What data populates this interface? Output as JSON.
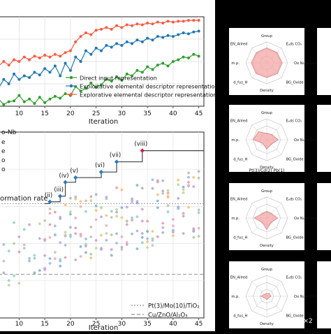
{
  "chart_data": [
    {
      "type": "line",
      "xlabel": "Iteration",
      "x_ticks": [
        10,
        15,
        20,
        25,
        30,
        35,
        40,
        45
      ],
      "xlim": [
        6,
        46
      ],
      "ylim": [
        0,
        1
      ],
      "legend_position": "lower-right",
      "series": [
        {
          "name": "Direct input representation",
          "color": "#2ca02c",
          "x": [
            6,
            7,
            8,
            9,
            10,
            11,
            12,
            13,
            14,
            15,
            16,
            17,
            18,
            19,
            20,
            21,
            22,
            23,
            24,
            25,
            26,
            27,
            28,
            29,
            30,
            31,
            32,
            33,
            34,
            35,
            36,
            37,
            38,
            39,
            40,
            41,
            42,
            43,
            44,
            45
          ],
          "values": [
            0.08,
            0.02,
            0.05,
            0.06,
            0.12,
            0.05,
            0.08,
            0.03,
            0.1,
            0.04,
            0.08,
            0.11,
            0.09,
            0.14,
            0.12,
            0.22,
            0.17,
            0.2,
            0.26,
            0.21,
            0.24,
            0.3,
            0.28,
            0.33,
            0.29,
            0.36,
            0.34,
            0.4,
            0.38,
            0.44,
            0.41,
            0.46,
            0.48,
            0.45,
            0.5,
            0.52,
            0.55,
            0.54,
            0.58,
            0.56
          ]
        },
        {
          "name": "Exploitative elemental descriptor representation",
          "color": "#1f77b4",
          "x": [
            6,
            7,
            8,
            9,
            10,
            11,
            12,
            13,
            14,
            15,
            16,
            17,
            18,
            19,
            20,
            21,
            22,
            23,
            24,
            25,
            26,
            27,
            28,
            29,
            30,
            31,
            32,
            33,
            34,
            35,
            36,
            37,
            38,
            39,
            40,
            41,
            42,
            43,
            44,
            45
          ],
          "values": [
            0.2,
            0.3,
            0.25,
            0.36,
            0.3,
            0.34,
            0.32,
            0.38,
            0.35,
            0.42,
            0.38,
            0.45,
            0.34,
            0.48,
            0.4,
            0.55,
            0.5,
            0.62,
            0.58,
            0.65,
            0.62,
            0.68,
            0.66,
            0.7,
            0.68,
            0.72,
            0.7,
            0.74,
            0.72,
            0.76,
            0.74,
            0.78,
            0.77,
            0.79,
            0.78,
            0.8,
            0.82,
            0.81,
            0.83,
            0.84
          ]
        },
        {
          "name": "Explorative elemental descriptor representation",
          "color": "#ff5a40",
          "x": [
            6,
            7,
            8,
            9,
            10,
            11,
            12,
            13,
            14,
            15,
            16,
            17,
            18,
            19,
            20,
            21,
            22,
            23,
            24,
            25,
            26,
            27,
            28,
            29,
            30,
            31,
            32,
            33,
            34,
            35,
            36,
            37,
            38,
            39,
            40,
            41,
            42,
            43,
            44,
            45
          ],
          "values": [
            0.45,
            0.5,
            0.46,
            0.52,
            0.5,
            0.55,
            0.52,
            0.56,
            0.54,
            0.57,
            0.55,
            0.58,
            0.56,
            0.6,
            0.62,
            0.72,
            0.78,
            0.82,
            0.8,
            0.85,
            0.86,
            0.88,
            0.86,
            0.9,
            0.88,
            0.91,
            0.9,
            0.92,
            0.91,
            0.93,
            0.92,
            0.94,
            0.93,
            0.95,
            0.94,
            0.95,
            0.95,
            0.96,
            0.96,
            0.96
          ]
        }
      ]
    },
    {
      "type": "scatter",
      "xlabel": "Iteration",
      "x_ticks": [
        10,
        15,
        20,
        25,
        30,
        35,
        40,
        45
      ],
      "xlim": [
        6,
        46
      ],
      "ylim": [
        0,
        10
      ],
      "partial_legend": [
        "o-Nb"
      ],
      "annotation_text": "ormation rate",
      "step_points": {
        "labels": [
          "(ii)",
          "(iii)",
          "(iv)",
          "(v)",
          "(vi)",
          "(vii)",
          "(viii)"
        ],
        "x": [
          16,
          18,
          19,
          21,
          26,
          29,
          34
        ],
        "y": [
          6.25,
          6.55,
          7.3,
          7.55,
          7.85,
          8.4,
          9.0
        ]
      },
      "reference_lines": [
        {
          "label": "Pt(3)/Mo(10)/TiO₂",
          "y": 6.15,
          "style": "dotted"
        },
        {
          "label": "Cu/ZnO/Al₂O₃",
          "y": 2.35,
          "style": "dashed"
        }
      ]
    }
  ],
  "radar": {
    "axis_labels": [
      "Group",
      "Eₐds CO₂",
      "Ox Num Oxide",
      "BG_Oxide",
      "Density",
      "d_fus_H",
      "m.p.",
      "EN_Allred"
    ],
    "cut_off_label": "Pt(3)/Cd(2) Pb(1)",
    "multiplier": "×2",
    "color": "#f4a6a6"
  }
}
